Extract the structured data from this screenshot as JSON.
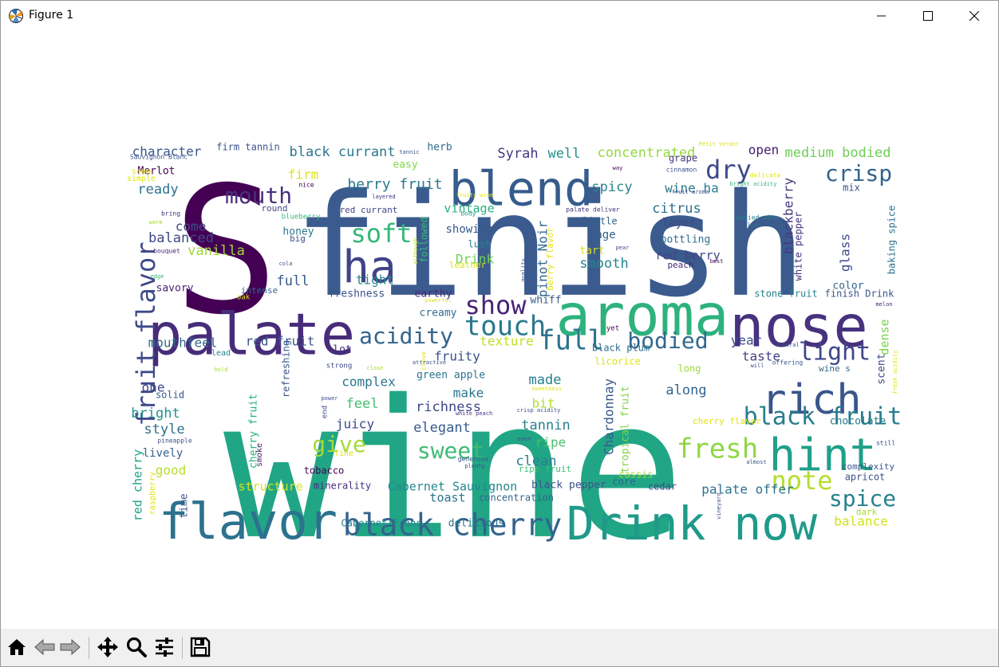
{
  "window": {
    "title": "Figure 1",
    "icon": "matplotlib-icon",
    "controls": [
      "minimize-icon",
      "maximize-icon",
      "close-icon"
    ]
  },
  "toolbar": {
    "buttons": [
      "home-icon",
      "back-icon",
      "forward-icon",
      "pan-icon",
      "zoom-icon",
      "configure-subplots-icon",
      "save-icon"
    ]
  },
  "wordcloud": {
    "colormap": "viridis",
    "background": "#ffffff",
    "words": [
      {
        "text": "wine",
        "color": "#21a685"
      },
      {
        "text": "finish",
        "color": "#3b5b8e"
      },
      {
        "text": "S",
        "color": "#440154"
      },
      {
        "text": "palate",
        "color": "#472c7a"
      },
      {
        "text": "aroma",
        "color": "#2db27d"
      },
      {
        "text": "nose",
        "color": "#46327e"
      },
      {
        "text": "flavor",
        "color": "#2c728e"
      },
      {
        "text": "Drink now",
        "color": "#1f9a8a"
      },
      {
        "text": "blend",
        "color": "#365c8d"
      },
      {
        "text": "ha",
        "color": "#414487"
      },
      {
        "text": "hint",
        "color": "#1fa088"
      },
      {
        "text": "rich",
        "color": "#39568c"
      },
      {
        "text": "black cherry",
        "color": "#33638d"
      },
      {
        "text": "fruit flavor",
        "color": "#3e4989"
      },
      {
        "text": "fresh",
        "color": "#8fd744"
      },
      {
        "text": "black fruit",
        "color": "#287d8e"
      },
      {
        "text": "note",
        "color": "#b5de2b"
      },
      {
        "text": "touch",
        "color": "#2a788e"
      },
      {
        "text": "full",
        "color": "#2c728e"
      },
      {
        "text": "bodied",
        "color": "#31688e"
      },
      {
        "text": "acidity",
        "color": "#33638d"
      },
      {
        "text": "show",
        "color": "#482475"
      },
      {
        "text": "soft",
        "color": "#35b779"
      },
      {
        "text": "dry",
        "color": "#3e4a89"
      },
      {
        "text": "crisp",
        "color": "#33638d"
      },
      {
        "text": "mouth",
        "color": "#472f7d"
      },
      {
        "text": "light",
        "color": "#404688"
      },
      {
        "text": "spice",
        "color": "#26828e"
      },
      {
        "text": "sweet",
        "color": "#3cbb75"
      },
      {
        "text": "give",
        "color": "#a5db36"
      },
      {
        "text": "berry fruit",
        "color": "#2a788e"
      },
      {
        "text": "black currant",
        "color": "#2a778e"
      },
      {
        "text": "character",
        "color": "#3a548c"
      },
      {
        "text": "firm tannin",
        "color": "#3b528b"
      },
      {
        "text": "Syrah",
        "color": "#453781"
      },
      {
        "text": "well",
        "color": "#20928c"
      },
      {
        "text": "concentrated",
        "color": "#95d840"
      },
      {
        "text": "open",
        "color": "#481a6c"
      },
      {
        "text": "medium bodied",
        "color": "#6ece58"
      },
      {
        "text": "Merlot",
        "color": "#440154"
      },
      {
        "text": "firm",
        "color": "#dde318"
      },
      {
        "text": "ready",
        "color": "#2c728e"
      },
      {
        "text": "spicy",
        "color": "#25858e"
      },
      {
        "text": "wine ha",
        "color": "#2a788e"
      },
      {
        "text": "citrus",
        "color": "#2d708e"
      },
      {
        "text": "blackberry",
        "color": "#443a83"
      },
      {
        "text": "glass",
        "color": "#3f4889"
      },
      {
        "text": "vintage",
        "color": "#29af7f"
      },
      {
        "text": "showing",
        "color": "#38588c"
      },
      {
        "text": "Drink",
        "color": "#73d056"
      },
      {
        "text": "smooth",
        "color": "#25848e"
      },
      {
        "text": "pinot Noir",
        "color": "#31688e"
      },
      {
        "text": "balanced",
        "color": "#3e4989"
      },
      {
        "text": "come",
        "color": "#3e4a89"
      },
      {
        "text": "vanilla",
        "color": "#a0da39"
      },
      {
        "text": "honey",
        "color": "#2a788e"
      },
      {
        "text": "full",
        "color": "#38598c"
      },
      {
        "text": "tight",
        "color": "#238a8d"
      },
      {
        "text": "savory",
        "color": "#482173"
      },
      {
        "text": "freshness",
        "color": "#3b528b"
      },
      {
        "text": "earthy",
        "color": "#472a7a"
      },
      {
        "text": "creamy",
        "color": "#2e6e8e"
      },
      {
        "text": "mouthfeel",
        "color": "#31688e"
      },
      {
        "text": "red fruit",
        "color": "#3a548c"
      },
      {
        "text": "lot",
        "color": "#46307e"
      },
      {
        "text": "texture",
        "color": "#bddf26"
      },
      {
        "text": "fruity",
        "color": "#3b528b"
      },
      {
        "text": "green apple",
        "color": "#2b758e"
      },
      {
        "text": "complex",
        "color": "#2a768e"
      },
      {
        "text": "make",
        "color": "#2a778e"
      },
      {
        "text": "feel",
        "color": "#44bf70"
      },
      {
        "text": "made",
        "color": "#287d8e"
      },
      {
        "text": "richness",
        "color": "#404688"
      },
      {
        "text": "elegant",
        "color": "#365c8d"
      },
      {
        "text": "juicy",
        "color": "#3e4989"
      },
      {
        "text": "tannin",
        "color": "#25838e"
      },
      {
        "text": "bit",
        "color": "#b5de2b"
      },
      {
        "text": "ripe",
        "color": "#4ac16d"
      },
      {
        "text": "clean",
        "color": "#26818e"
      },
      {
        "text": "Chardonnay",
        "color": "#38598c"
      },
      {
        "text": "tropical fruit",
        "color": "#84d44b"
      },
      {
        "text": "along",
        "color": "#32648e"
      },
      {
        "text": "year",
        "color": "#3e4989"
      },
      {
        "text": "taste",
        "color": "#433d84"
      },
      {
        "text": "dense",
        "color": "#7ad151"
      },
      {
        "text": "scent",
        "color": "#3e4a89"
      },
      {
        "text": "stone fruit",
        "color": "#26828e"
      },
      {
        "text": "finish Drink",
        "color": "#3b528b"
      },
      {
        "text": "color",
        "color": "#33638d"
      },
      {
        "text": "cherry flavor",
        "color": "#dde318"
      },
      {
        "text": "chocolate",
        "color": "#287c8e"
      },
      {
        "text": "complexity",
        "color": "#3a548c"
      },
      {
        "text": "apricot",
        "color": "#3b528b"
      },
      {
        "text": "palate offer",
        "color": "#2c728e"
      },
      {
        "text": "balance",
        "color": "#d2e21b"
      },
      {
        "text": "dark",
        "color": "#a8db34"
      },
      {
        "text": "bright",
        "color": "#20928c"
      },
      {
        "text": "style",
        "color": "#2e6f8e"
      },
      {
        "text": "lively",
        "color": "#34618d"
      },
      {
        "text": "good",
        "color": "#b8de29"
      },
      {
        "text": "one",
        "color": "#3f4788"
      },
      {
        "text": "solid",
        "color": "#38598c"
      },
      {
        "text": "red cherry",
        "color": "#1fa287"
      },
      {
        "text": "raspberry",
        "color": "#dde318"
      },
      {
        "text": "time",
        "color": "#3b528b"
      },
      {
        "text": "structure",
        "color": "#d5e21a"
      },
      {
        "text": "minerality",
        "color": "#46307e"
      },
      {
        "text": "Cabernet Sauvignon",
        "color": "#24868e"
      },
      {
        "text": "toast",
        "color": "#2b748e"
      },
      {
        "text": "concentration",
        "color": "#33638d"
      },
      {
        "text": "black pepper",
        "color": "#3b528b"
      },
      {
        "text": "core",
        "color": "#35608d"
      },
      {
        "text": "cedar",
        "color": "#3e4989"
      },
      {
        "text": "Cabernet Franc",
        "color": "#27808e"
      },
      {
        "text": "delicious",
        "color": "#2c728e"
      },
      {
        "text": "tobacco",
        "color": "#440154"
      },
      {
        "text": "cassis",
        "color": "#a0da39"
      },
      {
        "text": "refreshing",
        "color": "#38588c"
      },
      {
        "text": "cherry fruit",
        "color": "#2ab07f"
      },
      {
        "text": "smoke",
        "color": "#481769"
      },
      {
        "text": "black plum",
        "color": "#2d708e"
      },
      {
        "text": "licorice",
        "color": "#dde318"
      },
      {
        "text": "long",
        "color": "#9dd93b"
      },
      {
        "text": "ripe fruit",
        "color": "#3dbc74"
      },
      {
        "text": "berry flavor",
        "color": "#e5e419"
      },
      {
        "text": "whiff",
        "color": "#38598c"
      },
      {
        "text": "tart",
        "color": "#d8e219"
      },
      {
        "text": "age",
        "color": "#34618d"
      },
      {
        "text": "little",
        "color": "#32658e"
      },
      {
        "text": "layer",
        "color": "#3f4788"
      },
      {
        "text": "bottling",
        "color": "#2e6d8e"
      },
      {
        "text": "red berry",
        "color": "#414487"
      },
      {
        "text": "peach",
        "color": "#482878"
      },
      {
        "text": "grape",
        "color": "#453882"
      },
      {
        "text": "herb",
        "color": "#2e6e8e"
      },
      {
        "text": "easy",
        "color": "#86d549"
      },
      {
        "text": "lush",
        "color": "#26828e"
      },
      {
        "text": "followed",
        "color": "#38b977"
      },
      {
        "text": "leather",
        "color": "#dde318"
      },
      {
        "text": "white pepper",
        "color": "#46327e"
      },
      {
        "text": "baking spice",
        "color": "#2d708e"
      },
      {
        "text": "mix",
        "color": "#3b528b"
      },
      {
        "text": "red currant",
        "color": "#414487"
      },
      {
        "text": "blueberry",
        "color": "#35b779"
      },
      {
        "text": "round",
        "color": "#3e4a89"
      },
      {
        "text": "big",
        "color": "#3b528b"
      },
      {
        "text": "intense",
        "color": "#31688e"
      },
      {
        "text": "Sauvignon Blanc",
        "color": "#3a548c"
      },
      {
        "text": "simple",
        "color": "#dde318"
      },
      {
        "text": "seem",
        "color": "#e5e419"
      },
      {
        "text": "nice",
        "color": "#440154"
      },
      {
        "text": "bring",
        "color": "#46307e"
      },
      {
        "text": "warm",
        "color": "#a8db34"
      },
      {
        "text": "bouquet",
        "color": "#482878"
      },
      {
        "text": "cola",
        "color": "#3b528b"
      },
      {
        "text": "edge",
        "color": "#35b779"
      },
      {
        "text": "oak",
        "color": "#dde318"
      },
      {
        "text": "tannic",
        "color": "#3b528b"
      },
      {
        "text": "layered",
        "color": "#46307e"
      },
      {
        "text": "fruity wine",
        "color": "#e5e419"
      },
      {
        "text": "body",
        "color": "#1f9e89"
      },
      {
        "text": "although",
        "color": "#b5de2b"
      },
      {
        "text": "quality",
        "color": "#3e4a89"
      },
      {
        "text": "powerful",
        "color": "#dde318"
      },
      {
        "text": "palate deliver",
        "color": "#46327e"
      },
      {
        "text": "way",
        "color": "#440154"
      },
      {
        "text": "cinnamon",
        "color": "#3b528b"
      },
      {
        "text": "delicate",
        "color": "#e5e419"
      },
      {
        "text": "bright acidity",
        "color": "#35b779"
      },
      {
        "text": "fruit aroma",
        "color": "#3e4a89"
      },
      {
        "text": "bodied wine",
        "color": "#26828e"
      },
      {
        "text": "lean",
        "color": "#31688e"
      },
      {
        "text": "pear",
        "color": "#3e4a89"
      },
      {
        "text": "best",
        "color": "#440154"
      },
      {
        "text": "Petit Verdot",
        "color": "#dde318"
      },
      {
        "text": "melon",
        "color": "#482878"
      },
      {
        "text": "wine s",
        "color": "#31688e"
      },
      {
        "text": "fresh acidity",
        "color": "#dde318"
      },
      {
        "text": "mineral",
        "color": "#3b528b"
      },
      {
        "text": "will",
        "color": "#3e4a89"
      },
      {
        "text": "offering",
        "color": "#38588c"
      },
      {
        "text": "still",
        "color": "#3e4a89"
      },
      {
        "text": "almost",
        "color": "#3b528b"
      },
      {
        "text": "yet",
        "color": "#440154"
      },
      {
        "text": "clove",
        "color": "#dde318"
      },
      {
        "text": "attractive",
        "color": "#3b528b"
      },
      {
        "text": "strong",
        "color": "#3e4a89"
      },
      {
        "text": "close",
        "color": "#a8db34"
      },
      {
        "text": "sweetness",
        "color": "#dde318"
      },
      {
        "text": "crisp acidity",
        "color": "#3b528b"
      },
      {
        "text": "white peach",
        "color": "#46307e"
      },
      {
        "text": "even",
        "color": "#3b528b"
      },
      {
        "text": "generous",
        "color": "#3b528b"
      },
      {
        "text": "plenty",
        "color": "#3e4a89"
      },
      {
        "text": "power",
        "color": "#3b528b"
      },
      {
        "text": "end",
        "color": "#3e4a89"
      },
      {
        "text": "fine",
        "color": "#dde318"
      },
      {
        "text": "pineapple",
        "color": "#3b528b"
      },
      {
        "text": "lead",
        "color": "#26828e"
      },
      {
        "text": "bold",
        "color": "#a8db34"
      },
      {
        "text": "vineyard",
        "color": "#3b528b"
      }
    ]
  }
}
